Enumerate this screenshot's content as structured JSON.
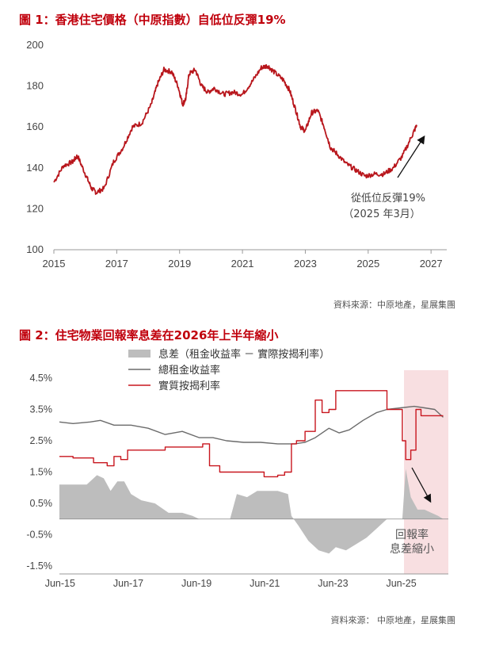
{
  "figure1": {
    "title": "圖 1：香港住宅價格（中原指數）自低位反彈19%",
    "annotation_line1": "從低位反彈19%",
    "annotation_line2": "（2025 年3月）",
    "source": "資料來源：中原地產，星展集團"
  },
  "figure2": {
    "title": "圖 2：住宅物業回報率息差在2026年上半年縮小",
    "shade_label_line1": "回報率",
    "shade_label_line2": "息差縮小",
    "source": "資料來源： 中原地產，星展集團"
  },
  "colors": {
    "title_red": "#c0000c",
    "price_line": "#b8161c",
    "gross_yield": "#6b6b6b",
    "effective_rate": "#c8161e",
    "spread_area": "#bdbdbd",
    "shade": "#f8dfe1"
  },
  "chart_data": [
    {
      "type": "line",
      "xlabel": "",
      "ylabel": "",
      "xlim": [
        2015,
        2027.5
      ],
      "ylim": [
        100,
        200
      ],
      "x_ticks": [
        2015,
        2017,
        2019,
        2021,
        2023,
        2025,
        2027
      ],
      "x_tick_labels": [
        "2015",
        "2017",
        "2019",
        "2021",
        "2023",
        "2025",
        "2027"
      ],
      "y_ticks": [
        100,
        120,
        140,
        160,
        180,
        200
      ],
      "y_tick_labels": [
        "100",
        "120",
        "140",
        "160",
        "180",
        "200"
      ],
      "grid": false,
      "series": [
        {
          "name": "",
          "x": [
            2015.0,
            2015.3,
            2015.6,
            2015.75,
            2016.0,
            2016.2,
            2016.35,
            2016.6,
            2016.9,
            2017.2,
            2017.5,
            2017.8,
            2018.1,
            2018.3,
            2018.5,
            2018.75,
            2018.95,
            2019.1,
            2019.2,
            2019.3,
            2019.5,
            2019.7,
            2019.9,
            2020.1,
            2020.4,
            2020.7,
            2021.0,
            2021.3,
            2021.6,
            2021.8,
            2022.0,
            2022.3,
            2022.5,
            2022.7,
            2022.85,
            2023.0,
            2023.2,
            2023.4,
            2023.6,
            2023.8,
            2024.0,
            2024.3,
            2024.6,
            2024.9,
            2025.2,
            2025.5,
            2025.8,
            2026.1,
            2026.4,
            2026.55
          ],
          "y": [
            133,
            141,
            143,
            146,
            137,
            130,
            128,
            130,
            143,
            150,
            160,
            162,
            171,
            181,
            188,
            187,
            180,
            171,
            174,
            186,
            188,
            180,
            177,
            179,
            176,
            177,
            176,
            182,
            189,
            190,
            187,
            183,
            178,
            168,
            160,
            158,
            167,
            168,
            160,
            150,
            147,
            142,
            139,
            136,
            137,
            137,
            140,
            146,
            156,
            161
          ]
        }
      ]
    },
    {
      "type": "line",
      "xlabel": "",
      "ylabel": "",
      "xlim": [
        2015.4,
        2026.8
      ],
      "ylim": [
        -1.5,
        4.5
      ],
      "x_ticks": [
        2015.42,
        2017.42,
        2019.42,
        2021.42,
        2023.42,
        2025.42
      ],
      "x_tick_labels": [
        "Jun-15",
        "Jun-17",
        "Jun-19",
        "Jun-21",
        "Jun-23",
        "Jun-25"
      ],
      "y_ticks": [
        4.5,
        3.5,
        2.5,
        1.5,
        0.5,
        -0.5,
        -1.5
      ],
      "y_tick_labels": [
        "4.5%",
        "3.5%",
        "2.5%",
        "1.5%",
        "0.5%",
        "-0.5%",
        "-1.5%"
      ],
      "grid": false,
      "legend": "top-center",
      "shaded_region": [
        2025.5,
        2026.8
      ],
      "series": [
        {
          "name": "息差（租金收益率 － 實際按揭利率）",
          "kind": "area",
          "x": [
            2015.4,
            2015.8,
            2016.2,
            2016.5,
            2016.7,
            2016.9,
            2017.1,
            2017.3,
            2017.5,
            2017.8,
            2018.2,
            2018.6,
            2019.0,
            2019.3,
            2019.5,
            2019.8,
            2020.1,
            2020.4,
            2020.6,
            2020.9,
            2021.2,
            2021.5,
            2021.8,
            2022.1,
            2022.2,
            2022.4,
            2022.7,
            2023.0,
            2023.3,
            2023.5,
            2023.8,
            2024.1,
            2024.4,
            2024.7,
            2025.0,
            2025.3,
            2025.45,
            2025.55,
            2025.7,
            2025.9,
            2026.1,
            2026.3,
            2026.5,
            2026.65
          ],
          "y": [
            1.1,
            1.1,
            1.1,
            1.4,
            1.3,
            0.9,
            1.2,
            1.2,
            0.8,
            0.6,
            0.5,
            0.2,
            0.2,
            0.1,
            0.0,
            0.0,
            0.0,
            0.0,
            0.8,
            0.7,
            0.9,
            0.9,
            0.9,
            0.8,
            0.1,
            -0.2,
            -0.7,
            -1.0,
            -1.1,
            -0.9,
            -1.0,
            -0.8,
            -0.6,
            -0.3,
            0.0,
            0.0,
            0.0,
            1.6,
            0.7,
            0.3,
            0.3,
            0.2,
            0.1,
            0.0
          ]
        },
        {
          "name": "總租金收益率",
          "kind": "line",
          "x": [
            2015.4,
            2015.8,
            2016.3,
            2016.6,
            2017.0,
            2017.5,
            2018.0,
            2018.5,
            2019.0,
            2019.5,
            2019.9,
            2020.3,
            2020.8,
            2021.3,
            2021.8,
            2022.3,
            2022.6,
            2022.9,
            2023.3,
            2023.6,
            2023.9,
            2024.3,
            2024.7,
            2025.0,
            2025.4,
            2025.8,
            2026.1,
            2026.4,
            2026.65
          ],
          "y": [
            3.1,
            3.05,
            3.1,
            3.15,
            3.0,
            3.0,
            2.9,
            2.7,
            2.8,
            2.6,
            2.6,
            2.5,
            2.45,
            2.45,
            2.4,
            2.4,
            2.45,
            2.6,
            2.9,
            2.75,
            2.85,
            3.15,
            3.4,
            3.5,
            3.55,
            3.6,
            3.55,
            3.5,
            3.25
          ]
        },
        {
          "name": "實質按揭利率",
          "kind": "line",
          "x": [
            2015.4,
            2015.8,
            2016.2,
            2016.4,
            2016.8,
            2017.0,
            2017.2,
            2017.4,
            2017.6,
            2018.0,
            2018.5,
            2019.0,
            2019.3,
            2019.6,
            2019.8,
            2020.1,
            2020.5,
            2021.0,
            2021.4,
            2021.8,
            2022.0,
            2022.2,
            2022.35,
            2022.6,
            2022.9,
            2023.1,
            2023.3,
            2023.5,
            2023.8,
            2024.2,
            2024.7,
            2025.0,
            2025.4,
            2025.45,
            2025.55,
            2025.7,
            2025.85,
            2026.0,
            2026.3,
            2026.65
          ],
          "y": [
            2.0,
            1.95,
            1.95,
            1.8,
            1.7,
            2.0,
            1.9,
            2.2,
            2.2,
            2.2,
            2.3,
            2.3,
            2.3,
            2.4,
            1.7,
            1.5,
            1.5,
            1.5,
            1.35,
            1.4,
            1.5,
            2.4,
            2.5,
            2.8,
            3.8,
            3.4,
            3.5,
            4.1,
            4.1,
            4.1,
            4.1,
            3.5,
            3.5,
            2.5,
            1.9,
            2.2,
            3.5,
            3.3,
            3.3,
            3.3
          ]
        }
      ]
    }
  ]
}
